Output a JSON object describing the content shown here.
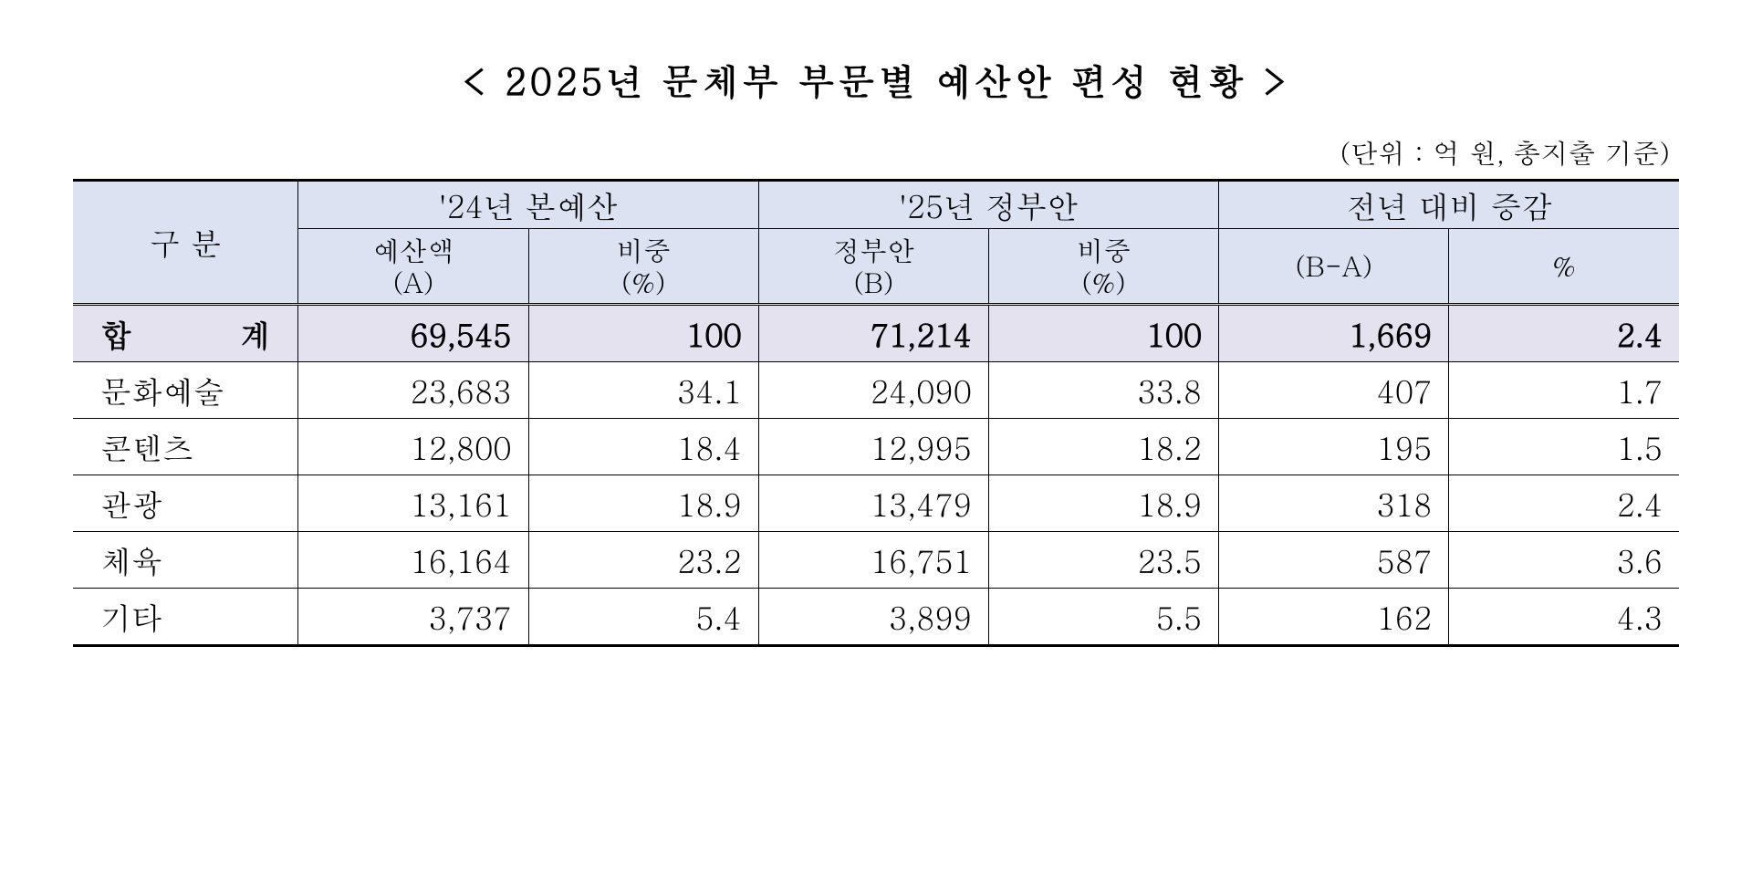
{
  "title": "< 2025년 문체부 부문별 예산안 편성 현황 >",
  "unit_note": "(단위 : 억 원, 총지출 기준)",
  "colors": {
    "header_bg": "#dbe2f1",
    "sum_bg": "#e5e2f0",
    "border": "#000000",
    "text": "#000000",
    "page_bg": "#ffffff"
  },
  "headers": {
    "category": "구  분",
    "group_24": "'24년 본예산",
    "group_25": "'25년 정부안",
    "group_diff": "전년 대비 증감",
    "budget_a": "예산액\n(A)",
    "ratio_24": "비중\n(%)",
    "gov_b": "정부안\n(B)",
    "ratio_25": "비중\n(%)",
    "diff_ba": "(B-A)",
    "diff_pct": "%"
  },
  "sum_row": {
    "label": "합  계",
    "a": "69,545",
    "r24": "100",
    "b": "71,214",
    "r25": "100",
    "diff": "1,669",
    "pct": "2.4"
  },
  "rows": [
    {
      "label": "문화예술",
      "a": "23,683",
      "r24": "34.1",
      "b": "24,090",
      "r25": "33.8",
      "diff": "407",
      "pct": "1.7"
    },
    {
      "label": "콘텐츠",
      "a": "12,800",
      "r24": "18.4",
      "b": "12,995",
      "r25": "18.2",
      "diff": "195",
      "pct": "1.5"
    },
    {
      "label": "관광",
      "a": "13,161",
      "r24": "18.9",
      "b": "13,479",
      "r25": "18.9",
      "diff": "318",
      "pct": "2.4"
    },
    {
      "label": "체육",
      "a": "16,164",
      "r24": "23.2",
      "b": "16,751",
      "r25": "23.5",
      "diff": "587",
      "pct": "3.6"
    },
    {
      "label": "기타",
      "a": "3,737",
      "r24": "5.4",
      "b": "3,899",
      "r25": "5.5",
      "diff": "162",
      "pct": "4.3"
    }
  ]
}
